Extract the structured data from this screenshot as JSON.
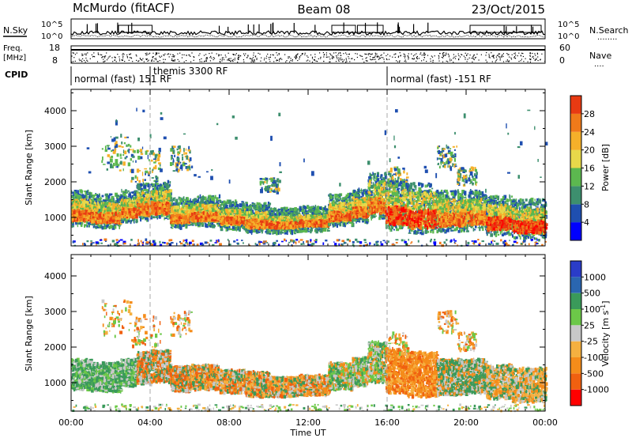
{
  "header": {
    "station": "McMurdo (fitACF)",
    "beam": "Beam 08",
    "date": "23/Oct/2015"
  },
  "strip_panels": {
    "nsky_label": "N.Sky",
    "nsearch_label": "N.Search",
    "nsearch_dots": "........",
    "counts_ticks_left": [
      "10^5",
      "10^0"
    ],
    "counts_ticks_right": [
      "10^5",
      "10^0"
    ],
    "freq_label_top": "Freq.",
    "freq_label_unit": "[MHz]",
    "freq_ticks": [
      "18",
      "8"
    ],
    "nave_label": "Nave",
    "nave_dots": "....",
    "nave_ticks": [
      "60",
      "0"
    ],
    "cpid_label": "CPID"
  },
  "cpid_modes": [
    {
      "label": "normal (fast) 151 RF",
      "start_hour": 0
    },
    {
      "label": "themis 3300 RF",
      "start_hour": 4
    },
    {
      "label": "normal (fast) -151 RF",
      "start_hour": 16
    }
  ],
  "colors": {
    "power": [
      "#0000ff",
      "#1f4fb0",
      "#3d8f6e",
      "#5cb84f",
      "#e8d84a",
      "#f5b02a",
      "#f07a1a",
      "#e83a12",
      "#ff0000"
    ],
    "velocity": [
      "#ff0000",
      "#f06010",
      "#f58c1a",
      "#f5b040",
      "#c8c8c8",
      "#6cc848",
      "#3a9a5a",
      "#2a66b0",
      "#2a3cc8"
    ]
  },
  "chart_data": [
    {
      "type": "heatmap",
      "name": "Power",
      "ylabel": "Slant Range [km]",
      "xlabel": "Time UT",
      "x_ticks": [
        "00:00",
        "04:00",
        "08:00",
        "12:00",
        "16:00",
        "20:00",
        "00:00"
      ],
      "y_ticks": [
        "1000",
        "2000",
        "3000",
        "4000"
      ],
      "ylim": [
        200,
        4600
      ],
      "xlim_hours": [
        0,
        24
      ],
      "colorbar_label": "Power [dB]",
      "colorbar_ticks": [
        "4",
        "8",
        "12",
        "16",
        "20",
        "24",
        "28"
      ],
      "colorbar_range": [
        0,
        32
      ]
    },
    {
      "type": "heatmap",
      "name": "Velocity",
      "ylabel": "Slant Range [km]",
      "xlabel": "Time UT",
      "x_ticks": [
        "00:00",
        "04:00",
        "08:00",
        "12:00",
        "16:00",
        "20:00",
        "00:00"
      ],
      "y_ticks": [
        "1000",
        "2000",
        "3000",
        "4000"
      ],
      "ylim": [
        200,
        4600
      ],
      "xlim_hours": [
        0,
        24
      ],
      "colorbar_label": "Velocity [m s^-1]",
      "colorbar_ticks": [
        "1000",
        "500",
        "100",
        "25",
        "-25",
        "-100",
        "-500",
        "-1000"
      ]
    }
  ],
  "xaxis_label": "Time UT"
}
